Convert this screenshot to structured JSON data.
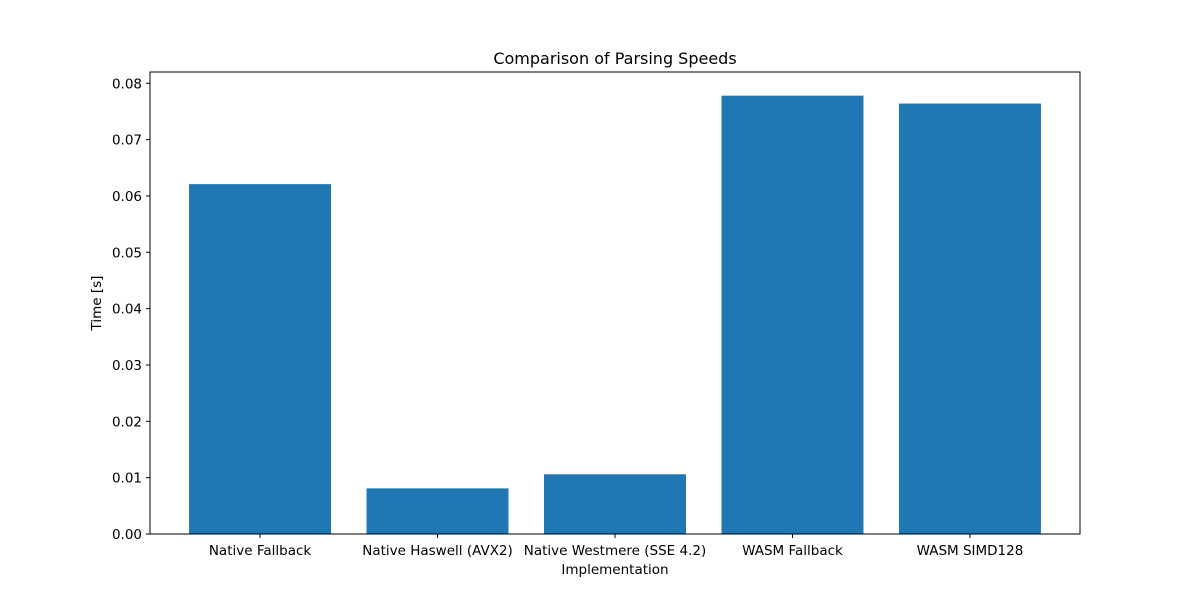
{
  "chart_data": {
    "type": "bar",
    "title": "Comparison of Parsing Speeds",
    "xlabel": "Implementation",
    "ylabel": "Time [s]",
    "categories": [
      "Native Fallback",
      "Native Haswell (AVX2)",
      "Native Westmere (SSE 4.2)",
      "WASM Fallback",
      "WASM SIMD128"
    ],
    "values": [
      0.0621,
      0.0081,
      0.0106,
      0.0778,
      0.0764
    ],
    "ylim": [
      0,
      0.082
    ],
    "yticks": [
      "0.00",
      "0.01",
      "0.02",
      "0.03",
      "0.04",
      "0.05",
      "0.06",
      "0.07",
      "0.08"
    ],
    "bar_color": "#1f77b4",
    "grid": false
  }
}
